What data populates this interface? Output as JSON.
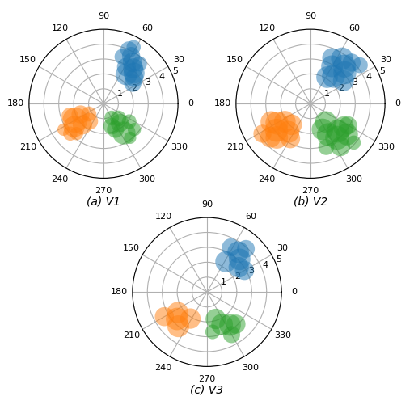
{
  "chart_data": [
    {
      "type": "polar",
      "title": "(a) V1",
      "xlim": [
        0,
        360
      ],
      "xticks": [
        0,
        30,
        60,
        90,
        120,
        150,
        180,
        210,
        240,
        270,
        300,
        330
      ],
      "ylim": [
        0,
        5
      ],
      "yticks": [
        1,
        2,
        3,
        4,
        5
      ],
      "grid": true,
      "series": [
        {
          "x": [
            55,
            60,
            50,
            45,
            65,
            40,
            52,
            58,
            68,
            35,
            62,
            48
          ],
          "values": [
            3.4,
            3.7,
            3.1,
            2.9,
            4.0,
            2.7,
            2.5,
            2.9,
            3.4,
            2.4,
            4.3,
            3.6
          ],
          "sizes": [
            300,
            260,
            320,
            350,
            220,
            260,
            380,
            280,
            200,
            240,
            160,
            180
          ]
        },
        {
          "x": [
            210,
            218,
            225,
            205,
            232,
            215,
            222,
            200,
            228,
            213
          ],
          "values": [
            2.2,
            2.5,
            2.0,
            1.7,
            1.5,
            1.2,
            3.0,
            2.4,
            2.7,
            3.2
          ],
          "sizes": [
            500,
            360,
            300,
            260,
            220,
            180,
            160,
            220,
            140,
            120
          ]
        },
        {
          "x": [
            305,
            310,
            295,
            315,
            300,
            320,
            290,
            308,
            325
          ],
          "values": [
            2.4,
            1.7,
            1.9,
            1.4,
            1.1,
            2.7,
            1.6,
            2.9,
            2.1
          ],
          "sizes": [
            420,
            260,
            230,
            200,
            170,
            140,
            220,
            120,
            170
          ]
        }
      ]
    },
    {
      "type": "polar",
      "title": "(b) V2",
      "xlim": [
        0,
        360
      ],
      "xticks": [
        0,
        30,
        60,
        90,
        120,
        150,
        180,
        210,
        240,
        270,
        300,
        330
      ],
      "ylim": [
        0,
        5
      ],
      "yticks": [
        1,
        2,
        3,
        4,
        5
      ],
      "grid": true,
      "series": [
        {
          "x": [
            48,
            55,
            42,
            60,
            35,
            50,
            65,
            45,
            58,
            38
          ],
          "values": [
            3.4,
            3.7,
            3.1,
            2.9,
            2.7,
            2.4,
            3.4,
            3.9,
            2.1,
            4.2
          ],
          "sizes": [
            420,
            390,
            420,
            380,
            350,
            420,
            300,
            260,
            370,
            200
          ]
        },
        {
          "x": [
            218,
            225,
            210,
            232,
            215,
            220,
            205,
            228,
            240,
            212
          ],
          "values": [
            2.9,
            3.2,
            2.6,
            2.4,
            2.1,
            3.5,
            2.9,
            1.9,
            2.7,
            3.8
          ],
          "sizes": [
            420,
            400,
            420,
            380,
            370,
            340,
            370,
            340,
            300,
            260
          ]
        },
        {
          "x": [
            308,
            315,
            300,
            320,
            295,
            325,
            305,
            310,
            330,
            290,
            318
          ],
          "values": [
            2.9,
            2.6,
            2.4,
            3.2,
            1.9,
            2.7,
            3.5,
            1.6,
            2.9,
            3.1,
            3.9
          ],
          "sizes": [
            450,
            420,
            420,
            380,
            370,
            340,
            300,
            370,
            260,
            200,
            160
          ]
        }
      ]
    },
    {
      "type": "polar",
      "title": "(c) V3",
      "xlim": [
        0,
        360
      ],
      "xticks": [
        0,
        30,
        60,
        90,
        120,
        150,
        180,
        210,
        240,
        270,
        300,
        330
      ],
      "ylim": [
        0,
        5
      ],
      "yticks": [
        1,
        2,
        3,
        4,
        5
      ],
      "grid": true,
      "series": [
        {
          "x": [
            45,
            52,
            38,
            58,
            30,
            48,
            62
          ],
          "values": [
            3.1,
            3.4,
            2.7,
            2.4,
            2.9,
            3.9,
            3.4
          ],
          "sizes": [
            370,
            370,
            330,
            360,
            290,
            250,
            250
          ]
        },
        {
          "x": [
            222,
            230,
            215,
            238,
            210
          ],
          "values": [
            2.7,
            3.0,
            2.4,
            2.1,
            3.3
          ],
          "sizes": [
            400,
            380,
            360,
            330,
            290
          ]
        },
        {
          "x": [
            295,
            305,
            288,
            312,
            300,
            278
          ],
          "values": [
            2.4,
            2.7,
            1.9,
            2.9,
            3.3,
            2.7
          ],
          "sizes": [
            370,
            370,
            330,
            290,
            230,
            170
          ]
        }
      ]
    }
  ]
}
